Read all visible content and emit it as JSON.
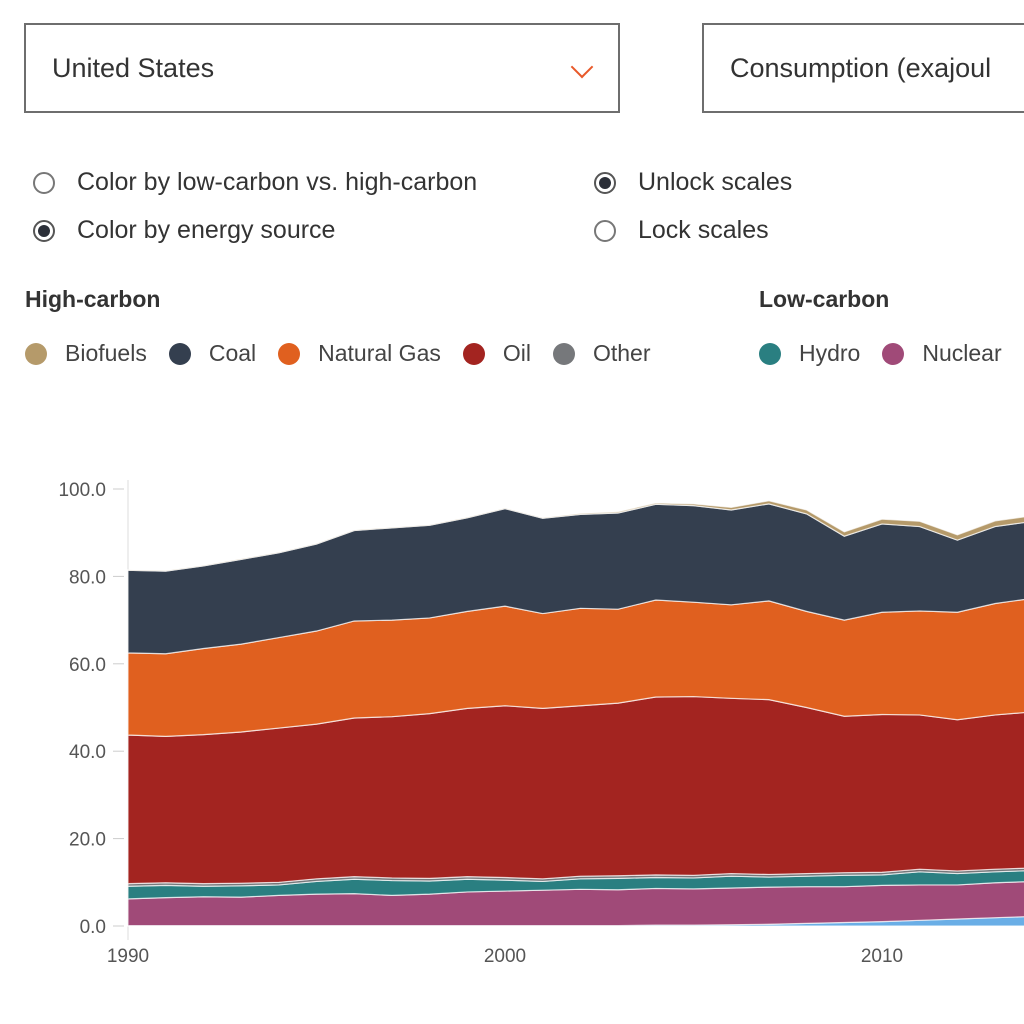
{
  "controls": {
    "country_select": {
      "value": "United States",
      "icon": "chevron-down-icon"
    },
    "metric_select": {
      "value": "Consumption (exajoul"
    },
    "color_options": [
      {
        "label": "Color by low-carbon vs. high-carbon",
        "selected": false
      },
      {
        "label": "Color by energy source",
        "selected": true
      }
    ],
    "scale_options": [
      {
        "label": "Unlock scales",
        "selected": true
      },
      {
        "label": "Lock scales",
        "selected": false
      }
    ]
  },
  "legend": {
    "high_carbon_title": "High-carbon",
    "low_carbon_title": "Low-carbon",
    "high_carbon": [
      {
        "label": "Biofuels",
        "color": "#b59a6a"
      },
      {
        "label": "Coal",
        "color": "#343f4f"
      },
      {
        "label": "Natural Gas",
        "color": "#e0601f"
      },
      {
        "label": "Oil",
        "color": "#a32420"
      },
      {
        "label": "Other",
        "color": "#76787b"
      }
    ],
    "low_carbon": [
      {
        "label": "Hydro",
        "color": "#2a7f81"
      },
      {
        "label": "Nuclear",
        "color": "#a04a78"
      }
    ]
  },
  "chart_data": {
    "type": "area",
    "stacked": true,
    "xlabel": "",
    "ylabel": "",
    "x": [
      1990,
      1991,
      1992,
      1993,
      1994,
      1995,
      1996,
      1997,
      1998,
      1999,
      2000,
      2001,
      2002,
      2003,
      2004,
      2005,
      2006,
      2007,
      2008,
      2009,
      2010,
      2011,
      2012,
      2013,
      2014
    ],
    "xticks": [
      "1990",
      "2000",
      "2010"
    ],
    "yticks": [
      "0.0",
      "20.0",
      "40.0",
      "60.0",
      "80.0",
      "100.0"
    ],
    "ylim": [
      0,
      100
    ],
    "grid": false,
    "series": [
      {
        "color": "#6aaee6",
        "values": [
          0.1,
          0.1,
          0.1,
          0.1,
          0.1,
          0.1,
          0.1,
          0.1,
          0.1,
          0.1,
          0.1,
          0.1,
          0.1,
          0.1,
          0.2,
          0.2,
          0.3,
          0.4,
          0.6,
          0.8,
          1.0,
          1.3,
          1.6,
          1.9,
          2.2
        ]
      },
      {
        "name": "Nuclear",
        "color": "#a04a78",
        "values": [
          6.1,
          6.4,
          6.6,
          6.5,
          6.9,
          7.2,
          7.3,
          6.9,
          7.2,
          7.7,
          7.9,
          8.1,
          8.3,
          8.2,
          8.4,
          8.3,
          8.4,
          8.5,
          8.4,
          8.2,
          8.3,
          8.1,
          7.8,
          8.0,
          8.0
        ]
      },
      {
        "name": "Hydro",
        "color": "#2a7f81",
        "values": [
          2.9,
          2.8,
          2.4,
          2.6,
          2.4,
          2.9,
          3.3,
          3.4,
          3.0,
          2.9,
          2.5,
          2.0,
          2.4,
          2.6,
          2.5,
          2.5,
          2.7,
          2.3,
          2.4,
          2.6,
          2.4,
          3.0,
          2.6,
          2.5,
          2.5
        ]
      },
      {
        "name": "Other",
        "color": "#76787b",
        "values": [
          0.6,
          0.6,
          0.6,
          0.6,
          0.6,
          0.6,
          0.6,
          0.6,
          0.6,
          0.6,
          0.6,
          0.6,
          0.6,
          0.6,
          0.6,
          0.6,
          0.6,
          0.6,
          0.6,
          0.6,
          0.6,
          0.6,
          0.6,
          0.6,
          0.6
        ]
      },
      {
        "name": "Oil",
        "color": "#a32420",
        "values": [
          34.0,
          33.5,
          34.1,
          34.6,
          35.3,
          35.4,
          36.3,
          36.9,
          37.7,
          38.5,
          39.3,
          39.0,
          39.0,
          39.5,
          40.7,
          40.9,
          40.1,
          40.0,
          38.0,
          35.8,
          36.1,
          35.3,
          34.6,
          35.3,
          35.7
        ]
      },
      {
        "name": "Natural Gas",
        "color": "#e0601f",
        "values": [
          18.8,
          18.9,
          19.7,
          20.1,
          20.7,
          21.3,
          22.2,
          22.1,
          21.9,
          22.2,
          22.8,
          21.7,
          22.3,
          21.5,
          22.2,
          21.6,
          21.4,
          22.6,
          22.0,
          22.0,
          23.4,
          23.8,
          24.6,
          25.5,
          26.0
        ]
      },
      {
        "name": "Coal",
        "color": "#343f4f",
        "values": [
          18.9,
          18.9,
          18.9,
          19.4,
          19.4,
          19.9,
          20.7,
          21.1,
          21.2,
          21.4,
          22.3,
          21.8,
          21.5,
          22.0,
          21.9,
          22.1,
          21.7,
          22.2,
          22.3,
          19.2,
          20.2,
          19.3,
          16.5,
          17.6,
          17.6
        ]
      },
      {
        "name": "Biofuels",
        "color": "#b59a6a",
        "values": [
          0.1,
          0.1,
          0.1,
          0.1,
          0.1,
          0.1,
          0.1,
          0.1,
          0.1,
          0.1,
          0.1,
          0.1,
          0.2,
          0.3,
          0.3,
          0.4,
          0.6,
          0.7,
          0.9,
          1.0,
          1.1,
          1.2,
          1.2,
          1.3,
          1.3
        ]
      }
    ]
  }
}
